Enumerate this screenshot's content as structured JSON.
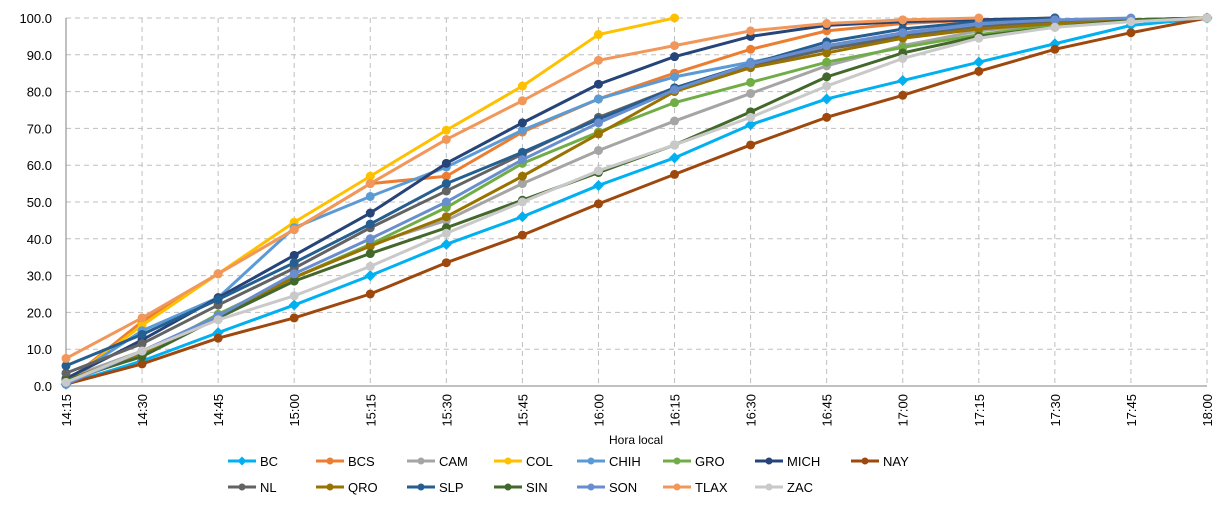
{
  "chart_data": {
    "type": "line",
    "xlabel": "Hora local",
    "ylabel": "",
    "ylim": [
      0,
      100
    ],
    "y_ticks": [
      "0.0",
      "10.0",
      "20.0",
      "30.0",
      "40.0",
      "50.0",
      "60.0",
      "70.0",
      "80.0",
      "90.0",
      "100.0"
    ],
    "grid": true,
    "legend_position": "bottom",
    "categories": [
      "14:15",
      "14:30",
      "14:45",
      "15:00",
      "15:15",
      "15:30",
      "15:45",
      "16:00",
      "16:15",
      "16:30",
      "16:45",
      "17:00",
      "17:15",
      "17:30",
      "17:45",
      "18:00"
    ],
    "series": [
      {
        "name": "BC",
        "color": "#00B0F0",
        "marker": "diamond",
        "values": [
          0.5,
          6.8,
          14.5,
          22.0,
          30.0,
          38.5,
          46.0,
          54.5,
          62.0,
          71.0,
          78.0,
          83.0,
          88.0,
          93.0,
          98.0,
          100
        ]
      },
      {
        "name": "BCS",
        "color": "#ED7D31",
        "marker": "circle",
        "values": [
          1.0,
          17.5,
          30.5,
          42.5,
          55.0,
          57.0,
          69.0,
          78.0,
          85.0,
          91.5,
          96.5,
          98.5,
          99.5,
          100,
          null,
          null
        ]
      },
      {
        "name": "CAM",
        "color": "#A5A5A5",
        "marker": "circle",
        "values": [
          2.0,
          9.5,
          18.5,
          29.5,
          38.5,
          45.0,
          55.0,
          64.0,
          72.0,
          79.5,
          87.0,
          92.5,
          96.5,
          98.5,
          99.5,
          100
        ]
      },
      {
        "name": "COL",
        "color": "#FFC000",
        "marker": "circle",
        "values": [
          1.0,
          16.5,
          30.5,
          44.5,
          57.0,
          69.5,
          81.5,
          95.5,
          100,
          null,
          null,
          null,
          null,
          null,
          null,
          null
        ]
      },
      {
        "name": "CHIH",
        "color": "#5B9BD5",
        "marker": "circle",
        "values": [
          1.5,
          15.0,
          24.0,
          43.0,
          51.5,
          59.5,
          69.5,
          78.0,
          84.0,
          88.0,
          92.0,
          95.5,
          98.0,
          99.0,
          99.5,
          100
        ]
      },
      {
        "name": "GRO",
        "color": "#70AD47",
        "marker": "circle",
        "values": [
          1.0,
          8.5,
          19.5,
          29.5,
          38.5,
          48.5,
          60.5,
          69.0,
          77.0,
          82.5,
          88.0,
          92.0,
          95.5,
          98.0,
          99.5,
          100
        ]
      },
      {
        "name": "MICH",
        "color": "#264478",
        "marker": "circle",
        "values": [
          2.0,
          12.5,
          24.0,
          35.5,
          47.0,
          60.5,
          71.5,
          82.0,
          89.5,
          95.0,
          98.0,
          99.0,
          99.5,
          100,
          null,
          null
        ]
      },
      {
        "name": "NAY",
        "color": "#9E480E",
        "marker": "circle",
        "values": [
          0.5,
          6.0,
          13.0,
          18.5,
          25.0,
          33.5,
          41.0,
          49.5,
          57.5,
          65.5,
          73.0,
          79.0,
          85.5,
          91.5,
          96.0,
          100
        ]
      },
      {
        "name": "NL",
        "color": "#636363",
        "marker": "circle",
        "values": [
          3.5,
          11.5,
          22.0,
          32.0,
          43.0,
          53.0,
          63.0,
          73.0,
          81.0,
          87.0,
          91.5,
          95.0,
          97.5,
          99.0,
          99.5,
          100
        ]
      },
      {
        "name": "QRO",
        "color": "#997300",
        "marker": "circle",
        "values": [
          1.5,
          9.0,
          19.0,
          29.5,
          38.0,
          46.0,
          57.0,
          68.5,
          80.0,
          86.5,
          90.5,
          94.5,
          97.0,
          98.5,
          99.5,
          100
        ]
      },
      {
        "name": "SLP",
        "color": "#255E91",
        "marker": "circle",
        "values": [
          5.5,
          14.0,
          23.5,
          33.5,
          44.0,
          55.0,
          63.5,
          72.5,
          81.0,
          87.5,
          93.5,
          97.0,
          99.0,
          100,
          null,
          null
        ]
      },
      {
        "name": "SIN",
        "color": "#43682B",
        "marker": "circle",
        "values": [
          1.5,
          8.0,
          18.5,
          28.5,
          36.0,
          43.0,
          50.5,
          58.0,
          65.5,
          74.5,
          84.0,
          90.5,
          95.0,
          97.5,
          99.5,
          100
        ]
      },
      {
        "name": "SON",
        "color": "#698ED0",
        "marker": "circle",
        "values": [
          0.5,
          9.5,
          19.0,
          30.5,
          40.0,
          50.0,
          61.5,
          71.5,
          80.5,
          87.5,
          92.5,
          96.0,
          98.5,
          99.5,
          100,
          null
        ]
      },
      {
        "name": "TLAX",
        "color": "#F1975A",
        "marker": "circle",
        "values": [
          7.5,
          18.5,
          30.5,
          42.5,
          55.0,
          67.0,
          77.5,
          88.5,
          92.5,
          96.5,
          98.5,
          99.5,
          100,
          null,
          null,
          null
        ]
      },
      {
        "name": "ZAC",
        "color": "#C9C9C9",
        "marker": "circle",
        "values": [
          1.0,
          9.5,
          18.0,
          24.5,
          32.5,
          41.5,
          50.0,
          58.5,
          65.5,
          73.0,
          81.5,
          89.0,
          94.5,
          97.5,
          99.0,
          100
        ]
      }
    ]
  }
}
